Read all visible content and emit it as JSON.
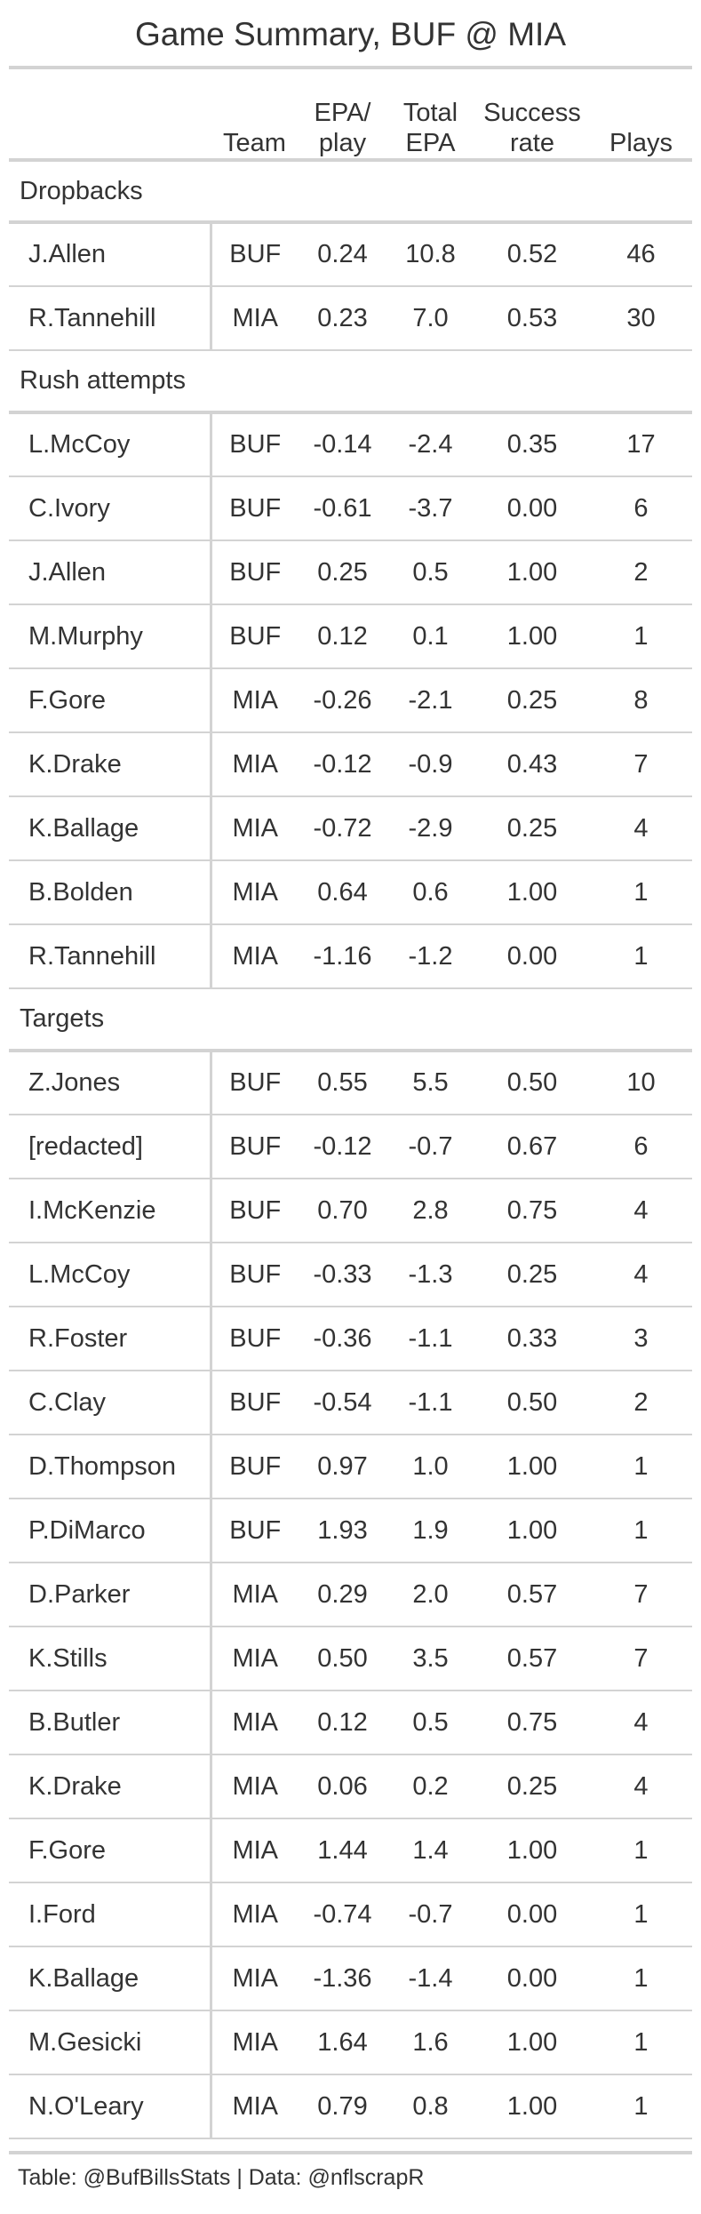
{
  "title": "Game Summary, BUF @ MIA",
  "columns": {
    "team": "Team",
    "epa_line1": "EPA/",
    "epa_line2": "play",
    "total_line1": "Total",
    "total_line2": "EPA",
    "sr_line1": "Success",
    "sr_line2": "rate",
    "plays": "Plays"
  },
  "groups": [
    {
      "label": "Dropbacks",
      "rows": [
        {
          "name": "J.Allen",
          "team": "BUF",
          "epa": "0.24",
          "total": "10.8",
          "sr": "0.52",
          "plays": "46"
        },
        {
          "name": "R.Tannehill",
          "team": "MIA",
          "epa": "0.23",
          "total": "7.0",
          "sr": "0.53",
          "plays": "30"
        }
      ]
    },
    {
      "label": "Rush attempts",
      "rows": [
        {
          "name": "L.McCoy",
          "team": "BUF",
          "epa": "-0.14",
          "total": "-2.4",
          "sr": "0.35",
          "plays": "17"
        },
        {
          "name": "C.Ivory",
          "team": "BUF",
          "epa": "-0.61",
          "total": "-3.7",
          "sr": "0.00",
          "plays": "6"
        },
        {
          "name": "J.Allen",
          "team": "BUF",
          "epa": "0.25",
          "total": "0.5",
          "sr": "1.00",
          "plays": "2"
        },
        {
          "name": "M.Murphy",
          "team": "BUF",
          "epa": "0.12",
          "total": "0.1",
          "sr": "1.00",
          "plays": "1"
        },
        {
          "name": "F.Gore",
          "team": "MIA",
          "epa": "-0.26",
          "total": "-2.1",
          "sr": "0.25",
          "plays": "8"
        },
        {
          "name": "K.Drake",
          "team": "MIA",
          "epa": "-0.12",
          "total": "-0.9",
          "sr": "0.43",
          "plays": "7"
        },
        {
          "name": "K.Ballage",
          "team": "MIA",
          "epa": "-0.72",
          "total": "-2.9",
          "sr": "0.25",
          "plays": "4"
        },
        {
          "name": "B.Bolden",
          "team": "MIA",
          "epa": "0.64",
          "total": "0.6",
          "sr": "1.00",
          "plays": "1"
        },
        {
          "name": "R.Tannehill",
          "team": "MIA",
          "epa": "-1.16",
          "total": "-1.2",
          "sr": "0.00",
          "plays": "1"
        }
      ]
    },
    {
      "label": "Targets",
      "rows": [
        {
          "name": "Z.Jones",
          "team": "BUF",
          "epa": "0.55",
          "total": "5.5",
          "sr": "0.50",
          "plays": "10"
        },
        {
          "name": "[redacted]",
          "team": "BUF",
          "epa": "-0.12",
          "total": "-0.7",
          "sr": "0.67",
          "plays": "6"
        },
        {
          "name": "I.McKenzie",
          "team": "BUF",
          "epa": "0.70",
          "total": "2.8",
          "sr": "0.75",
          "plays": "4"
        },
        {
          "name": "L.McCoy",
          "team": "BUF",
          "epa": "-0.33",
          "total": "-1.3",
          "sr": "0.25",
          "plays": "4"
        },
        {
          "name": "R.Foster",
          "team": "BUF",
          "epa": "-0.36",
          "total": "-1.1",
          "sr": "0.33",
          "plays": "3"
        },
        {
          "name": "C.Clay",
          "team": "BUF",
          "epa": "-0.54",
          "total": "-1.1",
          "sr": "0.50",
          "plays": "2"
        },
        {
          "name": "D.Thompson",
          "team": "BUF",
          "epa": "0.97",
          "total": "1.0",
          "sr": "1.00",
          "plays": "1"
        },
        {
          "name": "P.DiMarco",
          "team": "BUF",
          "epa": "1.93",
          "total": "1.9",
          "sr": "1.00",
          "plays": "1"
        },
        {
          "name": "D.Parker",
          "team": "MIA",
          "epa": "0.29",
          "total": "2.0",
          "sr": "0.57",
          "plays": "7"
        },
        {
          "name": "K.Stills",
          "team": "MIA",
          "epa": "0.50",
          "total": "3.5",
          "sr": "0.57",
          "plays": "7"
        },
        {
          "name": "B.Butler",
          "team": "MIA",
          "epa": "0.12",
          "total": "0.5",
          "sr": "0.75",
          "plays": "4"
        },
        {
          "name": "K.Drake",
          "team": "MIA",
          "epa": "0.06",
          "total": "0.2",
          "sr": "0.25",
          "plays": "4"
        },
        {
          "name": "F.Gore",
          "team": "MIA",
          "epa": "1.44",
          "total": "1.4",
          "sr": "1.00",
          "plays": "1"
        },
        {
          "name": "I.Ford",
          "team": "MIA",
          "epa": "-0.74",
          "total": "-0.7",
          "sr": "0.00",
          "plays": "1"
        },
        {
          "name": "K.Ballage",
          "team": "MIA",
          "epa": "-1.36",
          "total": "-1.4",
          "sr": "0.00",
          "plays": "1"
        },
        {
          "name": "M.Gesicki",
          "team": "MIA",
          "epa": "1.64",
          "total": "1.6",
          "sr": "1.00",
          "plays": "1"
        },
        {
          "name": "N.O'Leary",
          "team": "MIA",
          "epa": "0.79",
          "total": "0.8",
          "sr": "1.00",
          "plays": "1"
        }
      ]
    }
  ],
  "footer": "Table: @BufBillsStats | Data: @nflscrapR"
}
